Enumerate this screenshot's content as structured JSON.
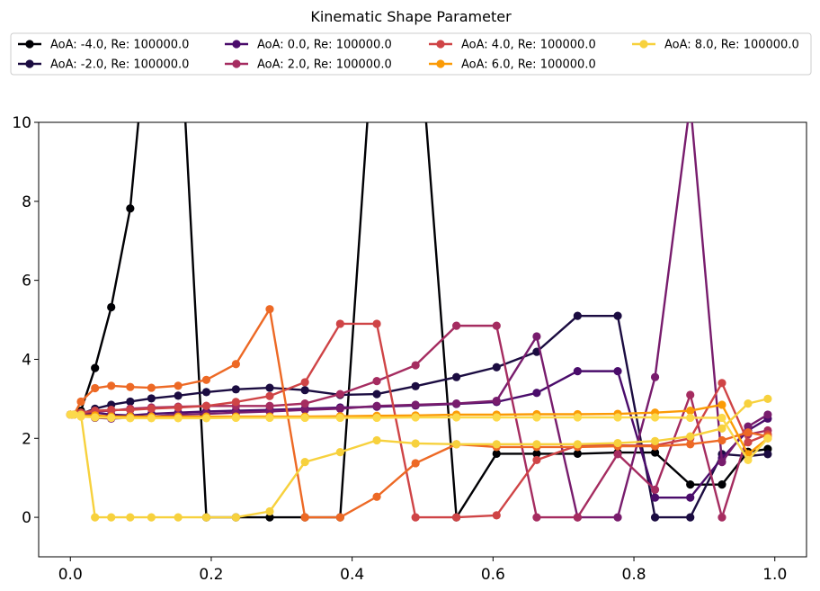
{
  "chart_data": {
    "type": "line",
    "title": "Kinematic Shape Parameter",
    "xlabel": "",
    "ylabel": "",
    "xlim": [
      -0.045,
      1.045
    ],
    "ylim": [
      -1,
      10
    ],
    "xticks": [
      "0.0",
      "0.2",
      "0.4",
      "0.6",
      "0.8",
      "1.0"
    ],
    "yticks": [
      "0",
      "2",
      "4",
      "6",
      "8",
      "10"
    ],
    "grid": false,
    "legend_position": "top",
    "legend_columns": 4,
    "x": [
      0.0,
      0.005,
      0.015,
      0.035,
      0.058,
      0.085,
      0.115,
      0.153,
      0.193,
      0.235,
      0.283,
      0.333,
      0.383,
      0.435,
      0.49,
      0.548,
      0.605,
      0.662,
      0.72,
      0.777,
      0.83,
      0.88,
      0.925,
      0.962,
      0.99
    ],
    "series": [
      {
        "name": "AoA: -4.0, Re: 100000.0",
        "color": "#000004",
        "values": [
          2.6,
          2.6,
          2.7,
          3.78,
          5.32,
          7.82,
          13.5,
          13.5,
          0.0,
          0.0,
          0.0,
          0.0,
          0.0,
          13.5,
          13.5,
          0.0,
          1.61,
          1.61,
          1.61,
          1.64,
          1.64,
          0.83,
          0.83,
          1.66,
          1.73
        ]
      },
      {
        "name": "AoA: -2.0, Re: 100000.0",
        "color": "#1b0c41",
        "values": [
          2.6,
          2.6,
          2.62,
          2.75,
          2.85,
          2.93,
          3.01,
          3.08,
          3.17,
          3.24,
          3.28,
          3.22,
          3.1,
          3.12,
          3.32,
          3.55,
          3.8,
          4.19,
          5.1,
          5.1,
          0.0,
          0.0,
          1.6,
          1.55,
          1.6
        ]
      },
      {
        "name": "AoA: 0.0, Re: 100000.0",
        "color": "#4a0c6b",
        "values": [
          2.6,
          2.6,
          2.6,
          2.65,
          2.6,
          2.58,
          2.62,
          2.65,
          2.68,
          2.7,
          2.72,
          2.75,
          2.78,
          2.8,
          2.83,
          2.87,
          2.92,
          3.15,
          3.7,
          3.7,
          0.5,
          0.5,
          1.5,
          2.2,
          2.5
        ]
      },
      {
        "name": "AoA: 2.0, Re: 100000.0",
        "color": "#781c6d",
        "values": [
          2.6,
          2.6,
          2.6,
          2.52,
          2.5,
          2.52,
          2.55,
          2.6,
          2.62,
          2.65,
          2.68,
          2.72,
          2.75,
          2.82,
          2.85,
          2.88,
          2.95,
          4.58,
          0.0,
          0.0,
          3.55,
          10.5,
          1.4,
          2.3,
          2.6
        ]
      },
      {
        "name": "AoA: 2.0, Re: 100000.0",
        "color": "#a52c60",
        "values": [
          2.6,
          2.6,
          2.63,
          2.68,
          2.7,
          2.75,
          2.78,
          2.8,
          2.82,
          2.82,
          2.82,
          2.88,
          3.12,
          3.45,
          3.85,
          4.85,
          4.85,
          0.0,
          0.0,
          1.6,
          0.7,
          3.1,
          0.0,
          2.1,
          2.2
        ]
      },
      {
        "name": "AoA: 4.0, Re: 100000.0",
        "color": "#cf4446",
        "values": [
          2.6,
          2.6,
          2.65,
          2.7,
          2.72,
          2.72,
          2.75,
          2.78,
          2.82,
          2.92,
          3.07,
          3.42,
          4.9,
          4.9,
          0.0,
          0.0,
          0.05,
          1.45,
          1.82,
          1.82,
          1.82,
          2.0,
          3.4,
          1.9,
          2.1
        ]
      },
      {
        "name": "AoA: 6.0, Re: 100000.0",
        "color": "#ed6925",
        "values": [
          2.6,
          2.6,
          2.93,
          3.27,
          3.33,
          3.3,
          3.28,
          3.33,
          3.48,
          3.88,
          5.27,
          0.0,
          0.0,
          0.52,
          1.37,
          1.85,
          1.78,
          1.78,
          1.78,
          1.8,
          1.8,
          1.85,
          1.95,
          2.15,
          2.05
        ]
      },
      {
        "name": "AoA: 6.0, Re: 100000.0",
        "color": "#fb9b06",
        "values": [
          2.6,
          2.6,
          2.58,
          2.58,
          2.55,
          2.55,
          2.55,
          2.55,
          2.55,
          2.55,
          2.55,
          2.55,
          2.56,
          2.57,
          2.58,
          2.6,
          2.6,
          2.61,
          2.61,
          2.62,
          2.65,
          2.7,
          2.85,
          1.6,
          2.0
        ]
      },
      {
        "name": "AoA: 8.0, Re: 100000.0",
        "color": "#f7d13d",
        "values": [
          2.6,
          2.6,
          2.6,
          0.0,
          0.0,
          0.0,
          0.0,
          0.0,
          0.0,
          0.0,
          0.15,
          1.4,
          1.65,
          1.95,
          1.87,
          1.85,
          1.85,
          1.85,
          1.85,
          1.88,
          1.93,
          2.05,
          2.25,
          2.88,
          3.0
        ]
      },
      {
        "name": "AoA: 8.0, Re: 100000.0",
        "color": "#fcd94a",
        "values": [
          2.6,
          2.6,
          2.55,
          2.53,
          2.52,
          2.51,
          2.51,
          2.51,
          2.51,
          2.52,
          2.52,
          2.52,
          2.52,
          2.52,
          2.53,
          2.53,
          2.53,
          2.53,
          2.53,
          2.53,
          2.53,
          2.52,
          2.52,
          1.45,
          2.0
        ]
      }
    ],
    "legend": [
      {
        "label": "AoA: -4.0, Re: 100000.0",
        "color": "#000004"
      },
      {
        "label": "AoA: -2.0, Re: 100000.0",
        "color": "#1b0c41"
      },
      {
        "label": "AoA: 0.0, Re: 100000.0",
        "color": "#4a0c6b"
      },
      {
        "label": "AoA: 2.0, Re: 100000.0",
        "color": "#a52c60"
      },
      {
        "label": "AoA: 4.0, Re: 100000.0",
        "color": "#cf4446"
      },
      {
        "label": "AoA: 6.0, Re: 100000.0",
        "color": "#fb9b06"
      },
      {
        "label": "AoA: 8.0, Re: 100000.0",
        "color": "#f7d13d"
      }
    ]
  }
}
